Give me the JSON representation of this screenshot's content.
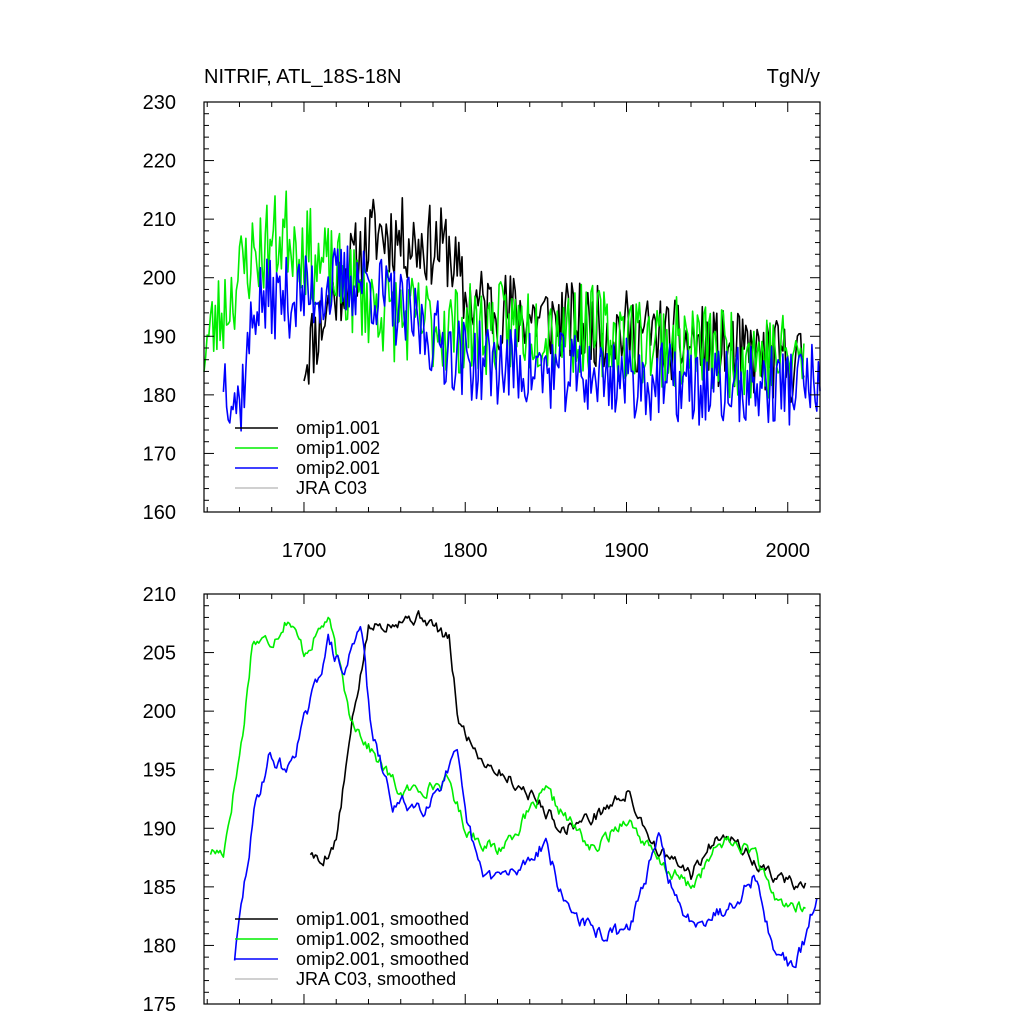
{
  "title_left": "NITRIF, ATL_18S-18N",
  "title_right": "TgN/y",
  "colors": {
    "omip1_001": "#000000",
    "omip1_002": "#00ee00",
    "omip2_001": "#0000ff",
    "jra_c03": "#c0c0c0"
  },
  "chart_data": [
    {
      "type": "line",
      "xlim": [
        1638,
        2020
      ],
      "ylim": [
        160,
        230
      ],
      "xticks": [
        1700,
        1800,
        1900,
        2000
      ],
      "yticks": [
        160,
        170,
        180,
        190,
        200,
        210,
        220,
        230
      ],
      "grid": false,
      "legend_position": "bottom-left",
      "series": [
        {
          "name": "omip1.001",
          "color": "#000000",
          "start": 1700,
          "end": 2010,
          "base": [
            [
              1700,
              186
            ],
            [
              1720,
              198
            ],
            [
              1745,
              208
            ],
            [
              1770,
              206
            ],
            [
              1790,
              205
            ],
            [
              1800,
              196
            ],
            [
              1850,
              193
            ],
            [
              1900,
              191
            ],
            [
              1950,
              188
            ],
            [
              2010,
              185
            ]
          ],
          "amp": 7,
          "seed": 11
        },
        {
          "name": "omip1.002",
          "color": "#00ee00",
          "start": 1638,
          "end": 2010,
          "base": [
            [
              1638,
              188
            ],
            [
              1665,
              203
            ],
            [
              1690,
              208
            ],
            [
              1710,
              202
            ],
            [
              1730,
              198
            ],
            [
              1760,
              193
            ],
            [
              1800,
              191
            ],
            [
              1850,
              192
            ],
            [
              1900,
              190
            ],
            [
              1950,
              188
            ],
            [
              2010,
              186
            ]
          ],
          "amp": 8,
          "seed": 23
        },
        {
          "name": "omip2.001",
          "color": "#0000ff",
          "start": 1650,
          "end": 2020,
          "base": [
            [
              1650,
              184
            ],
            [
              1660,
              178
            ],
            [
              1670,
              196
            ],
            [
              1700,
              197
            ],
            [
              1735,
              200
            ],
            [
              1770,
              192
            ],
            [
              1800,
              186
            ],
            [
              1850,
              184
            ],
            [
              1900,
              183
            ],
            [
              1950,
              181
            ],
            [
              2020,
              182
            ]
          ],
          "amp": 7,
          "seed": 37
        },
        {
          "name": "JRA C03",
          "color": "#c0c0c0",
          "start": null,
          "end": null,
          "base": [],
          "amp": 0,
          "seed": 0
        }
      ]
    },
    {
      "type": "line",
      "xlim": [
        1638,
        2020
      ],
      "ylim": [
        175,
        210
      ],
      "xticks": [
        1700,
        1800,
        1900,
        2000
      ],
      "yticks": [
        175,
        180,
        185,
        190,
        195,
        200,
        205,
        210
      ],
      "grid": false,
      "legend_position": "bottom-left",
      "series": [
        {
          "name": "omip1.001, smoothed",
          "color": "#000000",
          "start": 1704,
          "end": 2011,
          "base": [
            [
              1704,
              188
            ],
            [
              1710,
              187
            ],
            [
              1720,
              189
            ],
            [
              1730,
              199
            ],
            [
              1740,
              207
            ],
            [
              1760,
              208
            ],
            [
              1775,
              208
            ],
            [
              1790,
              206
            ],
            [
              1796,
              199
            ],
            [
              1810,
              196
            ],
            [
              1840,
              193
            ],
            [
              1860,
              190
            ],
            [
              1880,
              191
            ],
            [
              1900,
              193
            ],
            [
              1920,
              188
            ],
            [
              1940,
              186
            ],
            [
              1960,
              190
            ],
            [
              1980,
              187
            ],
            [
              1990,
              186
            ],
            [
              2011,
              185
            ]
          ],
          "amp": 1.2,
          "seed": 5
        },
        {
          "name": "omip1.002, smoothed",
          "color": "#00ee00",
          "start": 1642,
          "end": 2011,
          "base": [
            [
              1642,
              188
            ],
            [
              1650,
              188
            ],
            [
              1655,
              192
            ],
            [
              1662,
              198
            ],
            [
              1668,
              206
            ],
            [
              1680,
              206
            ],
            [
              1690,
              208
            ],
            [
              1700,
              205
            ],
            [
              1715,
              208
            ],
            [
              1728,
              200
            ],
            [
              1740,
              197
            ],
            [
              1760,
              193
            ],
            [
              1790,
              194
            ],
            [
              1800,
              190
            ],
            [
              1820,
              188
            ],
            [
              1850,
              193
            ],
            [
              1880,
              188
            ],
            [
              1900,
              191
            ],
            [
              1920,
              187
            ],
            [
              1940,
              185
            ],
            [
              1960,
              189
            ],
            [
              1980,
              188
            ],
            [
              1990,
              184
            ],
            [
              2011,
              183
            ]
          ],
          "amp": 1.2,
          "seed": 17
        },
        {
          "name": "omip2.001, smoothed",
          "color": "#0000ff",
          "start": 1657,
          "end": 2018,
          "base": [
            [
              1657,
              179
            ],
            [
              1670,
              192
            ],
            [
              1678,
              196
            ],
            [
              1690,
              195
            ],
            [
              1705,
              201
            ],
            [
              1715,
              206
            ],
            [
              1725,
              203
            ],
            [
              1735,
              208
            ],
            [
              1742,
              198
            ],
            [
              1755,
              192
            ],
            [
              1775,
              192
            ],
            [
              1795,
              196
            ],
            [
              1800,
              191
            ],
            [
              1810,
              186
            ],
            [
              1830,
              186
            ],
            [
              1850,
              189
            ],
            [
              1860,
              184
            ],
            [
              1880,
              181
            ],
            [
              1900,
              181
            ],
            [
              1920,
              189
            ],
            [
              1935,
              182
            ],
            [
              1960,
              183
            ],
            [
              1980,
              186
            ],
            [
              1990,
              180
            ],
            [
              2005,
              178
            ],
            [
              2018,
              184
            ]
          ],
          "amp": 1.4,
          "seed": 29
        },
        {
          "name": "JRA C03, smoothed",
          "color": "#c0c0c0",
          "start": null,
          "end": null,
          "base": [],
          "amp": 0,
          "seed": 0
        }
      ]
    }
  ]
}
